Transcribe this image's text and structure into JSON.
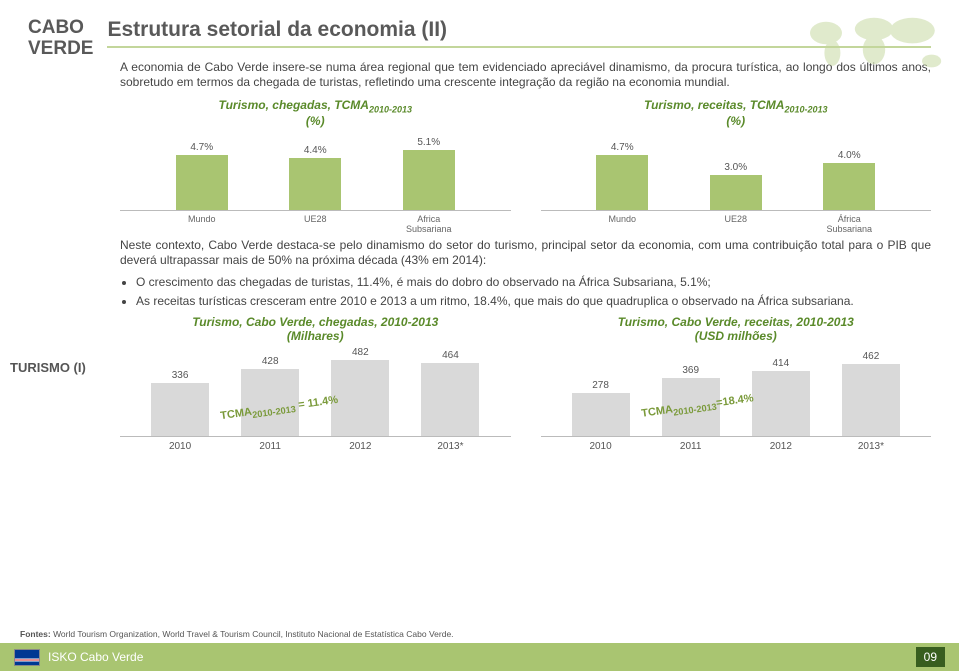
{
  "header": {
    "country_line1": "CABO",
    "country_line2": "VERDE",
    "title": "Estrutura setorial da economia (II)"
  },
  "intro": "A economia de Cabo Verde insere-se numa área regional que tem evidenciado apreciável dinamismo, da procura turística, ao longo dos últimos anos, sobretudo em termos da chegada de turistas, refletindo uma crescente integração da região na economia mundial.",
  "top_charts": {
    "left": {
      "title_pre": "Turismo, chegadas, TCMA",
      "title_sub": "2010-2013",
      "title_unit": "(%)",
      "categories": [
        "Mundo",
        "UE28",
        "Africa Subsariana"
      ],
      "values": [
        4.7,
        4.4,
        5.1
      ],
      "labels": [
        "4.7%",
        "4.4%",
        "5.1%"
      ],
      "bar_color": "#a9c571",
      "ymax": 6
    },
    "right": {
      "title_pre": "Turismo, receitas, TCMA",
      "title_sub": "2010-2013",
      "title_unit": "(%)",
      "categories": [
        "Mundo",
        "UE28",
        "África Subsariana"
      ],
      "values": [
        4.7,
        3.0,
        4.0
      ],
      "labels": [
        "4.7%",
        "3.0%",
        "4.0%"
      ],
      "bar_color": "#a9c571",
      "ymax": 6
    }
  },
  "section_label": "TURISMO (I)",
  "body_text": "Neste contexto, Cabo Verde destaca-se pelo dinamismo do setor do turismo, principal setor da economia, com uma contribuição total para o PIB que deverá ultrapassar mais de 50% na próxima década (43% em 2014):",
  "bullets": [
    "O crescimento das chegadas de turistas, 11.4%, é mais do dobro do observado na África Subsariana, 5.1%;",
    "As receitas turísticas cresceram entre 2010 e 2013  a um ritmo, 18.4%,  que mais do que quadruplica o observado na África subsariana."
  ],
  "bottom_charts": {
    "left": {
      "title": "Turismo, Cabo Verde, chegadas, 2010-2013",
      "unit": "(Milhares)",
      "categories": [
        "2010",
        "2011",
        "2012",
        "2013*"
      ],
      "values": [
        336,
        428,
        482,
        464
      ],
      "labels": [
        "336",
        "428",
        "482",
        "464"
      ],
      "tcma_pre": "TCMA",
      "tcma_sub": "2010-2013",
      "tcma_val": " = 11.4%",
      "ymax": 520,
      "bar_color": "#d9d9d9"
    },
    "right": {
      "title": "Turismo, Cabo Verde, receitas, 2010-2013",
      "unit": "(USD milhões)",
      "categories": [
        "2010",
        "2011",
        "2012",
        "2013*"
      ],
      "values": [
        278,
        369,
        414,
        462
      ],
      "labels": [
        "278",
        "369",
        "414",
        "462"
      ],
      "tcma_pre": "TCMA",
      "tcma_sub": "2010-2013",
      "tcma_val": "=18.4%",
      "ymax": 520,
      "bar_color": "#d9d9d9"
    }
  },
  "sources_label": "Fontes:",
  "sources": " World Tourism Organization, World Travel & Tourism Council, Instituto Nacional de Estatística Cabo Verde.",
  "footer_title": "ISKO Cabo Verde",
  "page_num": "09"
}
